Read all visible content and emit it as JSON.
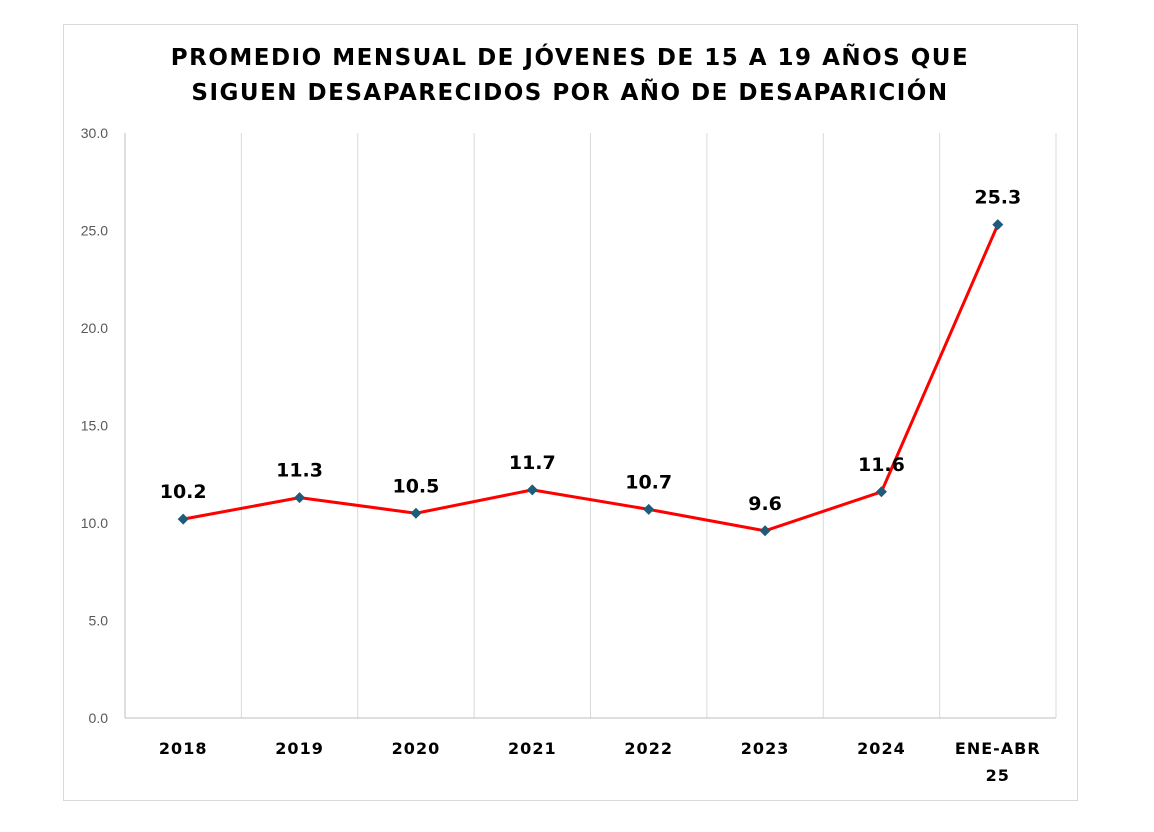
{
  "chart_data": {
    "type": "line",
    "title_lines": [
      "PROMEDIO MENSUAL DE JÓVENES DE 15 A 19 AÑOS QUE",
      "SIGUEN DESAPARECIDOS POR AÑO DE DESAPARICIÓN"
    ],
    "categories": [
      [
        "2018"
      ],
      [
        "2019"
      ],
      [
        "2020"
      ],
      [
        "2021"
      ],
      [
        "2022"
      ],
      [
        "2023"
      ],
      [
        "2024"
      ],
      [
        "ENE-ABR",
        "25"
      ]
    ],
    "values": [
      10.2,
      11.3,
      10.5,
      11.7,
      10.7,
      9.6,
      11.6,
      25.3
    ],
    "data_labels": [
      "10.2",
      "11.3",
      "10.5",
      "11.7",
      "10.7",
      "9.6",
      "11.6",
      "25.3"
    ],
    "y_ticks": [
      "0.0",
      "5.0",
      "10.0",
      "15.0",
      "20.0",
      "25.0",
      "30.0"
    ],
    "ylim": [
      0,
      30
    ],
    "grid": "vertical",
    "legend": "none",
    "colors": {
      "line": "#ff0000",
      "marker": "#1f5c7a",
      "grid": "#d9d9d9",
      "axis": "#bfbfbf"
    }
  }
}
